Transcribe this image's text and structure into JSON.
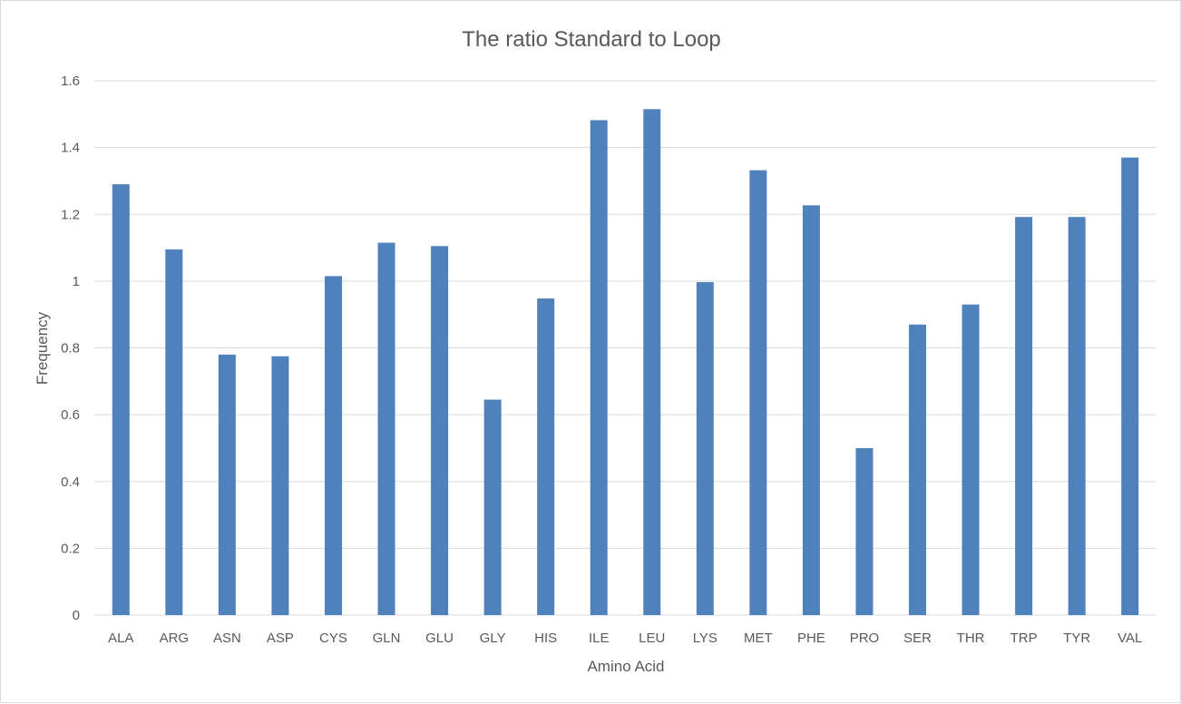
{
  "chart_data": {
    "type": "bar",
    "title": "The ratio Standard to Loop",
    "xlabel": "Amino Acid",
    "ylabel": "Frequency",
    "ylim": [
      0,
      1.6
    ],
    "yticks": [
      "0",
      "0.2",
      "0.4",
      "0.6",
      "0.8",
      "1",
      "1.2",
      "1.4",
      "1.6"
    ],
    "grid": true,
    "legend": "none",
    "bar_color": "#4f81bd",
    "categories": [
      "ALA",
      "ARG",
      "ASN",
      "ASP",
      "CYS",
      "GLN",
      "GLU",
      "GLY",
      "HIS",
      "ILE",
      "LEU",
      "LYS",
      "MET",
      "PHE",
      "PRO",
      "SER",
      "THR",
      "TRP",
      "TYR",
      "VAL"
    ],
    "values": [
      1.29,
      1.095,
      0.78,
      0.775,
      1.015,
      1.115,
      1.105,
      0.645,
      0.948,
      1.482,
      1.515,
      0.997,
      1.332,
      1.227,
      0.5,
      0.87,
      0.93,
      1.192,
      1.192,
      1.37
    ]
  }
}
